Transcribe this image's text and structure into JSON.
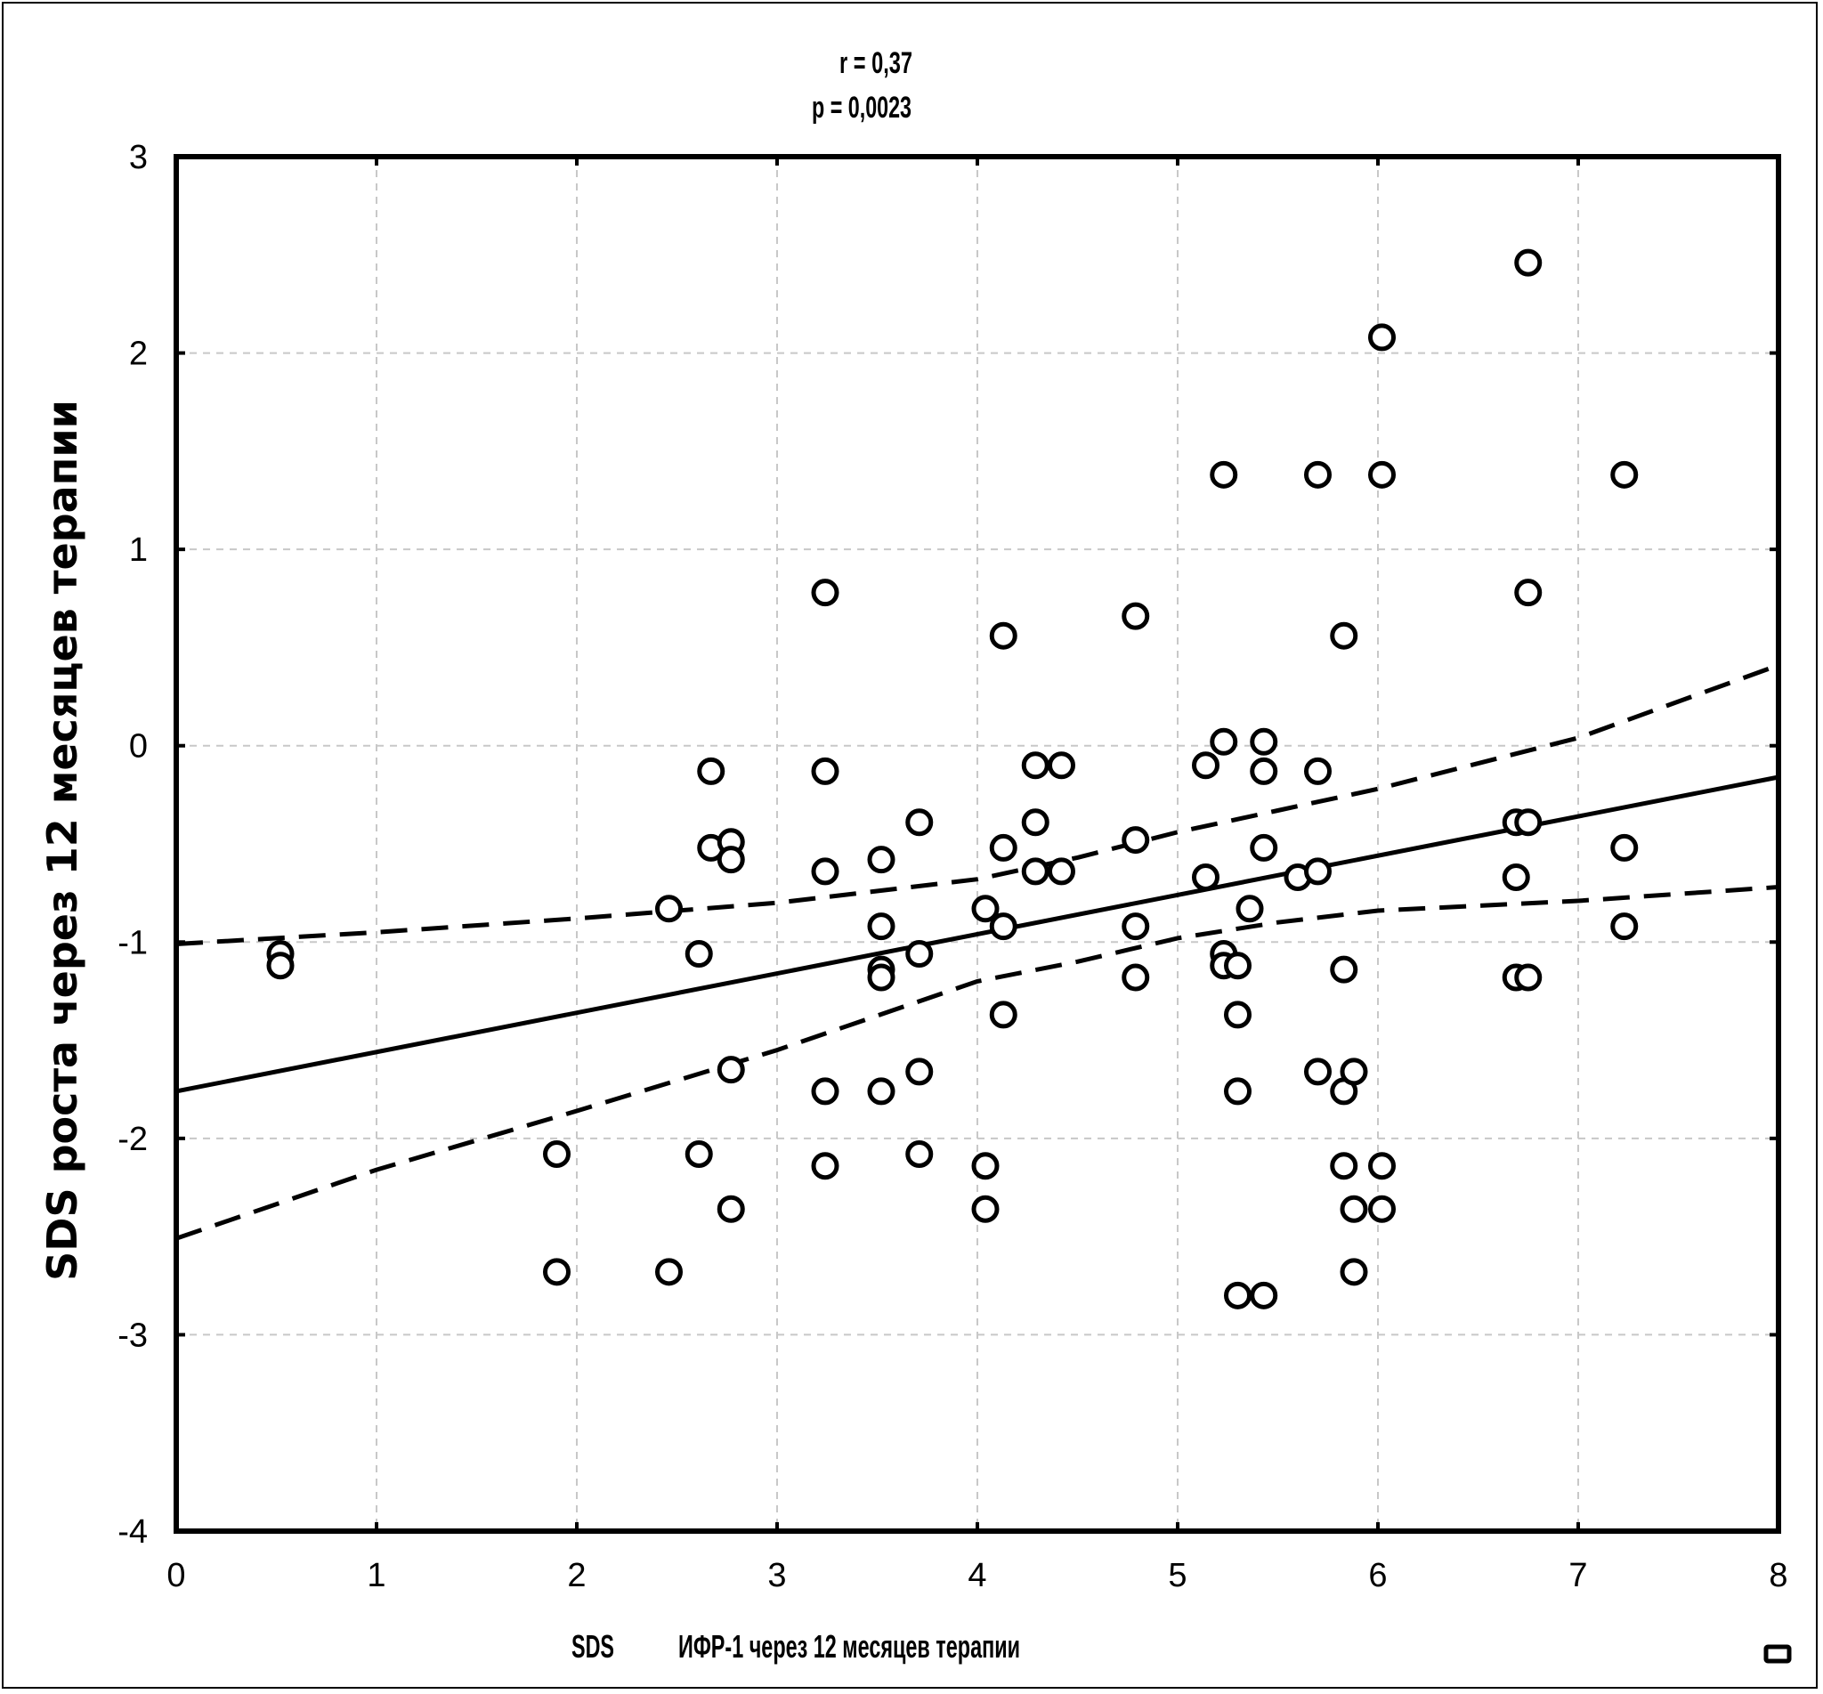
{
  "chart_data": {
    "type": "scatter",
    "annotation": {
      "r": "r = 0,37",
      "p": "p = 0,0023"
    },
    "xlabel": {
      "prefix": "SDS",
      "text": "ИФР-1 через 12 месяцев терапии"
    },
    "ylabel": "SDS роста через 12 месяцев терапии",
    "xlim": [
      0,
      8
    ],
    "ylim": [
      -4,
      3
    ],
    "x_ticks": [
      {
        "value": 0,
        "label": "0"
      },
      {
        "value": 1,
        "label": "1"
      },
      {
        "value": 2,
        "label": "2"
      },
      {
        "value": 3,
        "label": "3"
      },
      {
        "value": 4,
        "label": "4"
      },
      {
        "value": 5,
        "label": "5"
      },
      {
        "value": 6,
        "label": "6"
      },
      {
        "value": 7,
        "label": "7"
      },
      {
        "value": 8,
        "label": "8"
      }
    ],
    "y_ticks": [
      {
        "value": 3,
        "label": "3"
      },
      {
        "value": 2,
        "label": "2"
      },
      {
        "value": 1,
        "label": "1"
      },
      {
        "value": 0,
        "label": "0"
      },
      {
        "value": -1,
        "label": "-1"
      },
      {
        "value": -2,
        "label": "-2"
      },
      {
        "value": -3,
        "label": "-3"
      },
      {
        "value": -4,
        "label": "-4"
      }
    ],
    "grid": true,
    "legend": "none",
    "points": [
      [
        0.52,
        -1.06
      ],
      [
        0.52,
        -1.12
      ],
      [
        1.9,
        -2.08
      ],
      [
        1.9,
        -2.68
      ],
      [
        2.46,
        -0.83
      ],
      [
        2.46,
        -2.68
      ],
      [
        2.61,
        -1.06
      ],
      [
        2.61,
        -2.08
      ],
      [
        2.67,
        -0.13
      ],
      [
        2.67,
        -0.52
      ],
      [
        2.77,
        -0.49
      ],
      [
        2.77,
        -0.58
      ],
      [
        2.77,
        -1.65
      ],
      [
        2.77,
        -2.36
      ],
      [
        3.24,
        0.78
      ],
      [
        3.24,
        -0.13
      ],
      [
        3.24,
        -0.64
      ],
      [
        3.24,
        -1.76
      ],
      [
        3.24,
        -2.14
      ],
      [
        3.52,
        -0.58
      ],
      [
        3.52,
        -0.92
      ],
      [
        3.52,
        -1.14
      ],
      [
        3.52,
        -1.18
      ],
      [
        3.52,
        -1.76
      ],
      [
        3.71,
        -0.39
      ],
      [
        3.71,
        -1.06
      ],
      [
        3.71,
        -1.66
      ],
      [
        3.71,
        -2.08
      ],
      [
        4.04,
        -0.83
      ],
      [
        4.04,
        -2.14
      ],
      [
        4.04,
        -2.36
      ],
      [
        4.13,
        0.56
      ],
      [
        4.13,
        -0.52
      ],
      [
        4.13,
        -0.92
      ],
      [
        4.13,
        -1.37
      ],
      [
        4.29,
        -0.1
      ],
      [
        4.29,
        -0.39
      ],
      [
        4.29,
        -0.64
      ],
      [
        4.42,
        -0.1
      ],
      [
        4.42,
        -0.64
      ],
      [
        4.79,
        0.66
      ],
      [
        4.79,
        -0.48
      ],
      [
        4.79,
        -0.92
      ],
      [
        4.79,
        -1.18
      ],
      [
        5.14,
        -0.1
      ],
      [
        5.14,
        -0.67
      ],
      [
        5.23,
        1.38
      ],
      [
        5.23,
        0.02
      ],
      [
        5.23,
        -1.06
      ],
      [
        5.23,
        -1.12
      ],
      [
        5.3,
        -1.12
      ],
      [
        5.3,
        -1.37
      ],
      [
        5.3,
        -1.76
      ],
      [
        5.3,
        -2.8
      ],
      [
        5.36,
        -0.83
      ],
      [
        5.43,
        0.02
      ],
      [
        5.43,
        -0.13
      ],
      [
        5.43,
        -0.52
      ],
      [
        5.43,
        -2.8
      ],
      [
        5.6,
        -0.67
      ],
      [
        5.7,
        1.38
      ],
      [
        5.7,
        -0.13
      ],
      [
        5.7,
        -0.64
      ],
      [
        5.7,
        -1.66
      ],
      [
        5.83,
        0.56
      ],
      [
        5.83,
        -1.14
      ],
      [
        5.83,
        -1.76
      ],
      [
        5.83,
        -2.14
      ],
      [
        5.88,
        -1.66
      ],
      [
        5.88,
        -2.36
      ],
      [
        5.88,
        -2.68
      ],
      [
        6.02,
        2.08
      ],
      [
        6.02,
        1.38
      ],
      [
        6.02,
        -2.14
      ],
      [
        6.02,
        -2.36
      ],
      [
        6.69,
        -0.39
      ],
      [
        6.69,
        -0.67
      ],
      [
        6.69,
        -1.18
      ],
      [
        6.75,
        2.46
      ],
      [
        6.75,
        0.78
      ],
      [
        6.75,
        -0.39
      ],
      [
        6.75,
        -1.18
      ],
      [
        7.23,
        1.38
      ],
      [
        7.23,
        -0.52
      ],
      [
        7.23,
        -0.92
      ]
    ],
    "regression": {
      "intercept": -1.76,
      "slope": 0.2
    },
    "confidence_upper": [
      [
        0,
        -1.01
      ],
      [
        1,
        -0.95
      ],
      [
        2,
        -0.88
      ],
      [
        3,
        -0.8
      ],
      [
        4,
        -0.68
      ],
      [
        4.5,
        -0.57
      ],
      [
        5,
        -0.44
      ],
      [
        5.5,
        -0.33
      ],
      [
        6,
        -0.22
      ],
      [
        7,
        0.04
      ],
      [
        8,
        0.41
      ]
    ],
    "confidence_lower": [
      [
        0,
        -2.51
      ],
      [
        1,
        -2.16
      ],
      [
        2,
        -1.86
      ],
      [
        3,
        -1.55
      ],
      [
        4,
        -1.2
      ],
      [
        4.5,
        -1.1
      ],
      [
        5,
        -0.98
      ],
      [
        5.5,
        -0.9
      ],
      [
        6,
        -0.84
      ],
      [
        7,
        -0.79
      ],
      [
        8,
        -0.72
      ]
    ]
  }
}
